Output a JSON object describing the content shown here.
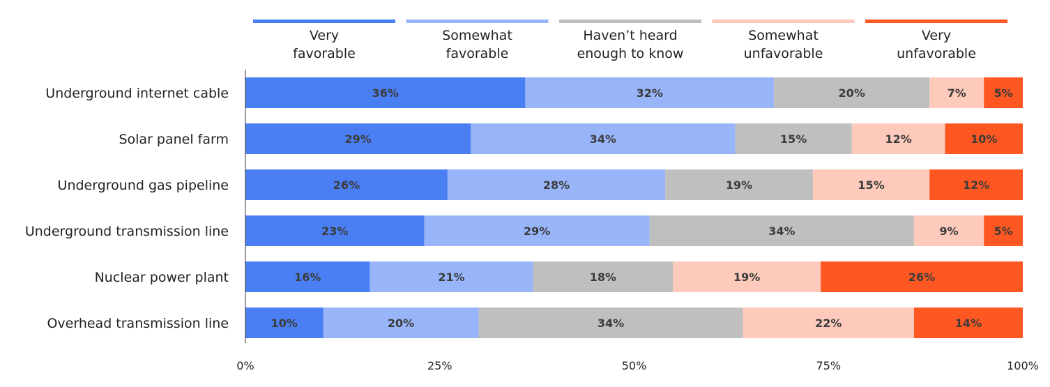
{
  "chart_data": {
    "type": "bar",
    "orientation": "horizontal",
    "stacked": true,
    "categories": [
      "Underground internet cable",
      "Solar panel farm",
      "Underground gas pipeline",
      "Underground transmission line",
      "Nuclear power plant",
      "Overhead transmission line"
    ],
    "series": [
      {
        "name": "Very favorable",
        "legend_lines": [
          "Very",
          "favorable"
        ],
        "color": "#4a7ff3",
        "values": [
          36,
          29,
          26,
          23,
          16,
          10
        ]
      },
      {
        "name": "Somewhat favorable",
        "legend_lines": [
          "Somewhat",
          "favorable"
        ],
        "color": "#97b5f8",
        "values": [
          32,
          34,
          28,
          29,
          21,
          20
        ]
      },
      {
        "name": "Haven’t heard enough to know",
        "legend_lines": [
          "Haven’t heard",
          "enough to know"
        ],
        "color": "#bfbfbf",
        "values": [
          20,
          15,
          19,
          34,
          18,
          34
        ]
      },
      {
        "name": "Somewhat unfavorable",
        "legend_lines": [
          "Somewhat",
          "unfavorable"
        ],
        "color": "#fdcabb",
        "values": [
          7,
          12,
          15,
          9,
          19,
          22
        ]
      },
      {
        "name": "Very unfavorable",
        "legend_lines": [
          "Very",
          "unfavorable"
        ],
        "color": "#ff5722",
        "values": [
          5,
          10,
          12,
          5,
          26,
          14
        ]
      }
    ],
    "xlim": [
      0,
      100
    ],
    "xticks": [
      "0%",
      "25%",
      "50%",
      "75%",
      "100%"
    ],
    "value_suffix": "%",
    "legend_position": "top",
    "title": "",
    "xlabel": "",
    "ylabel": ""
  }
}
